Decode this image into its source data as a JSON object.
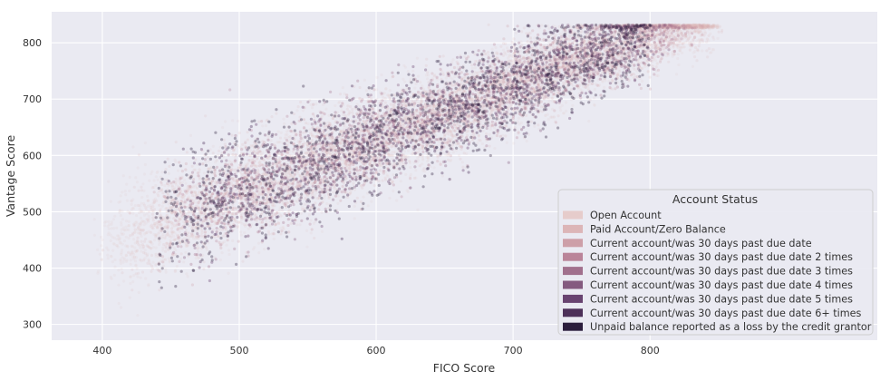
{
  "chart_data": {
    "type": "scatter",
    "title": "",
    "xlabel": "FICO Score",
    "ylabel": "Vantage Score",
    "xlim": [
      363,
      966
    ],
    "ylim": [
      272,
      855
    ],
    "xticks": [
      400,
      500,
      600,
      700,
      800
    ],
    "yticks": [
      300,
      400,
      500,
      600,
      700,
      800
    ],
    "grid": true,
    "background": "#eaeaf2",
    "gridColor": "#ffffff",
    "legend": {
      "title": "Account Status",
      "placement": "lower-right"
    },
    "trend": {
      "slope": 0.95,
      "intercept": 58,
      "vantage_min": 300,
      "vantage_max": 832,
      "fico_min": 385,
      "fico_max": 845
    },
    "series": [
      {
        "name": "Open Account",
        "color": "#e6cccb",
        "approx_points": 4500,
        "fico_range": [
          400,
          845
        ],
        "spread": 44,
        "opacity": 0.18
      },
      {
        "name": "Paid Account/Zero Balance",
        "color": "#dcb5b7",
        "approx_points": 3500,
        "fico_range": [
          420,
          845
        ],
        "spread": 40,
        "opacity": 0.18
      },
      {
        "name": "Current account/was 30 days past due date",
        "color": "#cd9fa8",
        "approx_points": 900,
        "fico_range": [
          440,
          835
        ],
        "spread": 42,
        "opacity": 0.28
      },
      {
        "name": "Current account/was 30 days past due date 2 times",
        "color": "#ba8499",
        "approx_points": 600,
        "fico_range": [
          450,
          830
        ],
        "spread": 42,
        "opacity": 0.3
      },
      {
        "name": "Current account/was 30 days past due date 3 times",
        "color": "#a1708d",
        "approx_points": 500,
        "fico_range": [
          455,
          820
        ],
        "spread": 44,
        "opacity": 0.32
      },
      {
        "name": "Current account/was 30 days past due date 4 times",
        "color": "#845a7f",
        "approx_points": 450,
        "fico_range": [
          460,
          810
        ],
        "spread": 44,
        "opacity": 0.34
      },
      {
        "name": "Current account/was 30 days past due date 5 times",
        "color": "#684370",
        "approx_points": 450,
        "fico_range": [
          460,
          800
        ],
        "spread": 46,
        "opacity": 0.36
      },
      {
        "name": "Current account/was 30 days past due date 6+ times",
        "color": "#4d3059",
        "approx_points": 800,
        "fico_range": [
          455,
          790
        ],
        "spread": 46,
        "opacity": 0.38
      },
      {
        "name": "Unpaid balance reported as a loss by the credit grantor",
        "color": "#2c1e3d",
        "approx_points": 1200,
        "fico_range": [
          440,
          800
        ],
        "spread": 48,
        "opacity": 0.35
      }
    ]
  }
}
